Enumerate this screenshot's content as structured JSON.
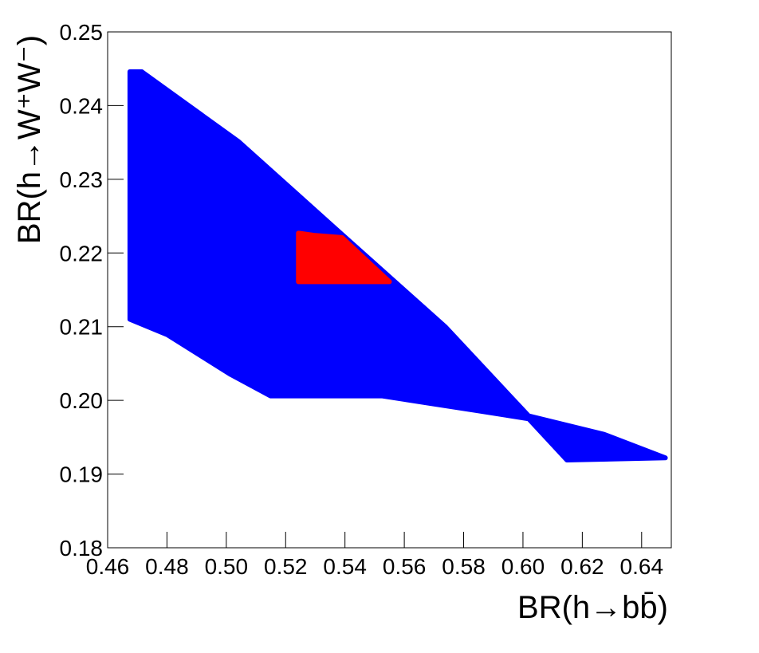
{
  "chart_data": {
    "type": "region",
    "xlabel": "BR(h→bb̄)",
    "ylabel": "BR(h→W⁺W⁻)",
    "xlim": [
      0.46,
      0.65
    ],
    "ylim": [
      0.18,
      0.25
    ],
    "xticks": [
      0.46,
      0.48,
      {
        "value": 0.5,
        "label": "0.50"
      },
      0.52,
      0.54,
      0.56,
      0.58,
      {
        "value": 0.6,
        "label": "0.60"
      },
      0.62,
      0.64
    ],
    "yticks": [
      0.18,
      0.19,
      {
        "value": 0.2,
        "label": "0.20"
      },
      0.21,
      0.22,
      0.23,
      0.24,
      0.25
    ],
    "series": [
      {
        "color": "#0000ff",
        "x": [
          0.4675,
          0.4715,
          0.5042,
          0.5363,
          0.5738,
          0.6019,
          0.6273,
          0.648,
          0.6148,
          0.6019,
          0.5845,
          0.5524,
          0.5149,
          0.5015,
          0.4801,
          0.4675
        ],
        "y": [
          0.2446,
          0.2446,
          0.2351,
          0.2235,
          0.21,
          0.1979,
          0.1954,
          0.1922,
          0.1919,
          0.1975,
          0.1986,
          0.2006,
          0.2006,
          0.2035,
          0.2089,
          0.211
        ]
      },
      {
        "color": "#ff0000",
        "x": [
          0.5243,
          0.5296,
          0.539,
          0.555,
          0.5243
        ],
        "y": [
          0.2227,
          0.2224,
          0.2221,
          0.2161,
          0.2161
        ]
      }
    ]
  }
}
